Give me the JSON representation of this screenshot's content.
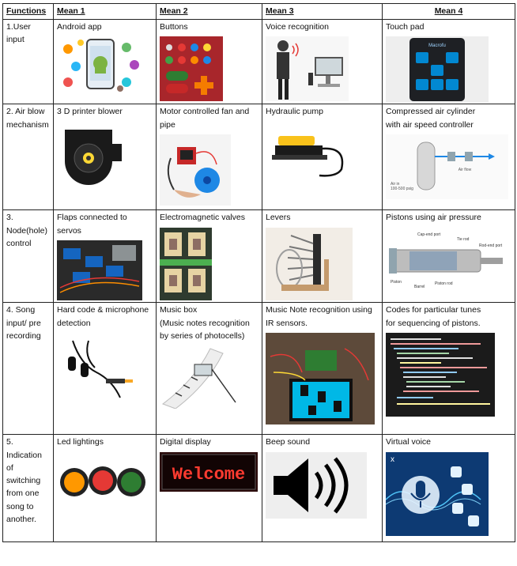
{
  "headers": [
    "Functions",
    "Mean 1",
    "Mean 2",
    "Mean 3",
    "Mean 4"
  ],
  "rows": [
    {
      "function": "1.User\ninput",
      "means": [
        "Android app",
        "Buttons",
        "Voice recognition",
        "Touch pad"
      ]
    },
    {
      "function": "2. Air blow\nmechanism",
      "means": [
        "3 D printer blower",
        "Motor controlled fan and\npipe",
        "Hydraulic pump",
        "Compressed air cylinder\nwith air speed controller"
      ]
    },
    {
      "function": "3.\nNode(hole)\ncontrol",
      "means": [
        "Flaps connected to servos",
        "Electromagnetic valves",
        "Levers",
        "Pistons using air pressure"
      ]
    },
    {
      "function": "4. Song\ninput/ pre\nrecording",
      "means": [
        "Hard code & microphone\ndetection",
        "Music box\n(Music notes recognition\n by series of photocells)",
        "Music Note recognition using\nIR sensors.",
        "Codes for particular tunes\n for sequencing of pistons."
      ]
    },
    {
      "function": "5.\nIndication\nof\nswitching\nfrom one\nsong to\nanother.",
      "means": [
        "Led lightings",
        "Digital display",
        "Beep sound",
        "Virtual voice"
      ]
    }
  ],
  "images": {
    "touchpad_brand": "Macrofu",
    "display_text": "Welcome",
    "cylinder_air_in": "Air in\n100-500 psig",
    "cylinder_label": "Air flow",
    "piston_labels": [
      "Cap-end port",
      "Tie rod",
      "Rod-end port",
      "Piston",
      "Barrel",
      "Piston rod"
    ]
  },
  "colors": {
    "border": "#222222",
    "buttons_bg": "#a8262b",
    "display_bg": "#2a0a0a",
    "display_led": "#ff3b30",
    "voice_bg": "#0d3a73",
    "code_bg": "#1b1b1b"
  }
}
